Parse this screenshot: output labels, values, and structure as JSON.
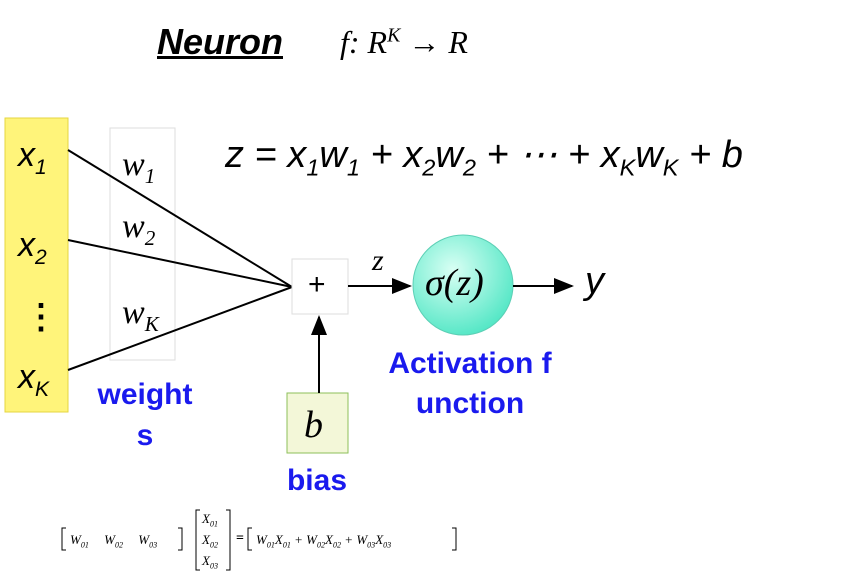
{
  "title": {
    "word": "Neuron",
    "formula": [
      {
        "text": "f: R"
      },
      {
        "text": "K",
        "script": "sup"
      },
      {
        "text": " → R"
      }
    ]
  },
  "equation": [
    {
      "text": "z = x"
    },
    {
      "text": "1",
      "script": "sub"
    },
    {
      "text": "w"
    },
    {
      "text": "1",
      "script": "sub"
    },
    {
      "text": " + x"
    },
    {
      "text": "2",
      "script": "sub"
    },
    {
      "text": "w"
    },
    {
      "text": "2",
      "script": "sub"
    },
    {
      "text": " + ⋯ + x"
    },
    {
      "text": "K",
      "script": "sub"
    },
    {
      "text": "w"
    },
    {
      "text": "K",
      "script": "sub"
    },
    {
      "text": " + b"
    }
  ],
  "inputs": [
    [
      {
        "text": "x"
      },
      {
        "text": "1",
        "script": "sub"
      }
    ],
    [
      {
        "text": "x"
      },
      {
        "text": "2",
        "script": "sub"
      }
    ],
    [
      {
        "text": "⋮"
      }
    ],
    [
      {
        "text": "x"
      },
      {
        "text": "K",
        "script": "sub"
      }
    ]
  ],
  "weights": [
    [
      {
        "text": "w"
      },
      {
        "text": "1",
        "script": "sub"
      }
    ],
    [
      {
        "text": "w"
      },
      {
        "text": "2",
        "script": "sub"
      }
    ],
    [
      {
        "text": "w"
      },
      {
        "text": "K",
        "script": "sub"
      }
    ]
  ],
  "sum": "+",
  "z": "z",
  "activation": "σ(z)",
  "output": "y",
  "bias_symbol": "b",
  "labels": {
    "weights": [
      "weight",
      "s"
    ],
    "activation": [
      "Activation f",
      "unction"
    ],
    "bias": "bias"
  },
  "matrix": {
    "row": [
      {
        "text": "W"
      },
      {
        "text": "01",
        "script": "sub"
      },
      {
        "text": " W"
      },
      {
        "text": "02",
        "script": "sub"
      },
      {
        "text": " W"
      },
      {
        "text": "03",
        "script": "sub"
      }
    ],
    "column": [
      [
        {
          "text": "X"
        },
        {
          "text": "01",
          "script": "sub"
        }
      ],
      [
        {
          "text": "X"
        },
        {
          "text": "02",
          "script": "sub"
        }
      ],
      [
        {
          "text": "X"
        },
        {
          "text": "03",
          "script": "sub"
        }
      ]
    ],
    "equals": "=",
    "result": [
      {
        "text": "W"
      },
      {
        "text": "01",
        "script": "sub"
      },
      {
        "text": "X"
      },
      {
        "text": "01",
        "script": "sub"
      },
      {
        "text": " + W"
      },
      {
        "text": "02",
        "script": "sub"
      },
      {
        "text": "X"
      },
      {
        "text": "02",
        "script": "sub"
      },
      {
        "text": " + W"
      },
      {
        "text": "03",
        "script": "sub"
      },
      {
        "text": "X"
      },
      {
        "text": "03",
        "script": "sub"
      }
    ]
  }
}
